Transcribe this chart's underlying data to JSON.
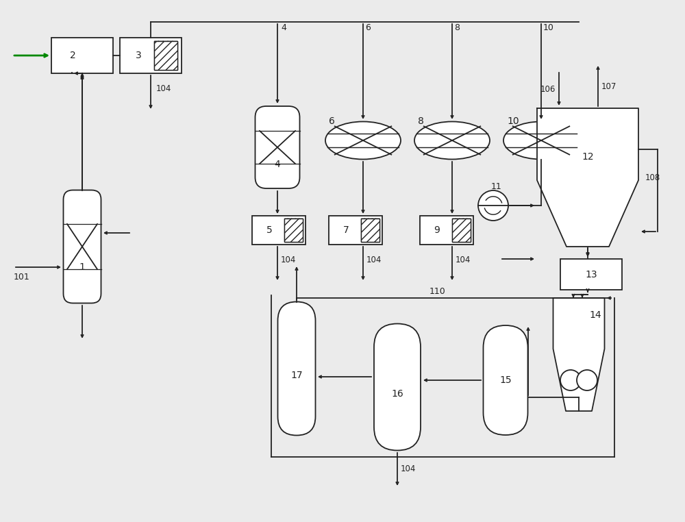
{
  "bg_color": "#ebebeb",
  "line_color": "#222222",
  "green_color": "#008800",
  "figsize": [
    10.0,
    7.62
  ],
  "dpi": 100,
  "lw": 1.3
}
